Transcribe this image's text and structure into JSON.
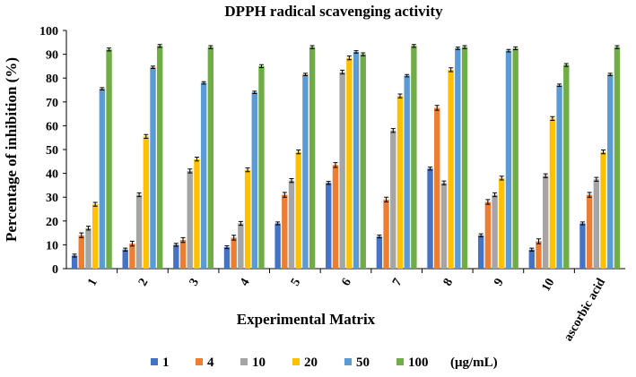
{
  "chart_data": {
    "type": "bar",
    "title": "DPPH radical scavenging activity",
    "xlabel": "Experimental Matrix",
    "ylabel": "Percentage of inhibition (%)",
    "ylim": [
      0,
      100
    ],
    "yticks": [
      0,
      10,
      20,
      30,
      40,
      50,
      60,
      70,
      80,
      90,
      100
    ],
    "grid": false,
    "error_bars": true,
    "legend_position": "bottom",
    "legend_unit": "(μg/mL)",
    "categories": [
      "1",
      "2",
      "3",
      "4",
      "5",
      "6",
      "7",
      "8",
      "9",
      "10",
      "ascorbic acid"
    ],
    "series": [
      {
        "name": "1",
        "color": "#4472C4",
        "values": [
          5.5,
          8,
          10,
          9,
          19,
          36,
          13.5,
          42,
          14,
          8,
          19
        ],
        "errors": [
          0.6,
          0.6,
          0.6,
          0.6,
          0.6,
          0.6,
          0.6,
          0.6,
          0.6,
          0.6,
          0.6
        ]
      },
      {
        "name": "4",
        "color": "#ED7D31",
        "values": [
          14,
          10.5,
          12,
          13,
          31,
          43.5,
          29,
          67.5,
          28,
          11.5,
          31
        ],
        "errors": [
          1,
          1,
          1,
          1,
          1,
          1,
          1,
          1,
          1,
          1,
          1
        ]
      },
      {
        "name": "10",
        "color": "#A5A5A5",
        "values": [
          17,
          31,
          41,
          19,
          37,
          82.5,
          58,
          36,
          31,
          39,
          37.5
        ],
        "errors": [
          0.8,
          0.8,
          0.8,
          0.8,
          0.8,
          0.8,
          0.8,
          0.8,
          0.8,
          0.8,
          0.8
        ]
      },
      {
        "name": "20",
        "color": "#FFC000",
        "values": [
          27,
          55.5,
          46,
          41.5,
          49,
          88.5,
          72.5,
          83.5,
          38,
          63,
          49
        ],
        "errors": [
          0.8,
          0.8,
          0.8,
          0.8,
          0.8,
          0.8,
          0.8,
          0.8,
          0.8,
          0.8,
          0.8
        ]
      },
      {
        "name": "50",
        "color": "#5B9BD5",
        "values": [
          75.5,
          84.5,
          78,
          74,
          81.5,
          91,
          81,
          92.5,
          91.5,
          77,
          81.5
        ],
        "errors": [
          0.5,
          0.5,
          0.5,
          0.5,
          0.5,
          0.5,
          0.5,
          0.5,
          0.5,
          0.5,
          0.5
        ]
      },
      {
        "name": "100",
        "color": "#70AD47",
        "values": [
          92,
          93.5,
          93,
          85,
          93,
          90,
          93.5,
          93,
          92.5,
          85.5,
          93
        ],
        "errors": [
          0.6,
          0.6,
          0.6,
          0.6,
          0.6,
          0.6,
          0.6,
          0.6,
          0.6,
          0.6,
          0.6
        ]
      }
    ]
  }
}
